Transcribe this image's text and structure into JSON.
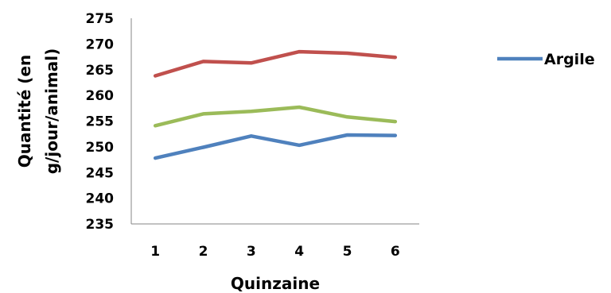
{
  "chart_data": {
    "type": "line",
    "title": "",
    "xlabel": "Quinzaine",
    "ylabel_line1": "Quantité (en",
    "ylabel_line2": "g/jour/animal)",
    "categories": [
      "1",
      "2",
      "3",
      "4",
      "5",
      "6"
    ],
    "ylim": [
      235,
      275
    ],
    "yticks": [
      235,
      240,
      245,
      250,
      255,
      260,
      265,
      270,
      275
    ],
    "grid": false,
    "legend_position": "right",
    "series": [
      {
        "name": "Argile",
        "color": "#4f81bd",
        "values": [
          247.8,
          249.9,
          252.1,
          250.3,
          252.3,
          252.2
        ]
      },
      {
        "name": "",
        "color": "#c0504d",
        "values": [
          263.8,
          266.6,
          266.3,
          268.5,
          268.2,
          267.4
        ]
      },
      {
        "name": "",
        "color": "#9bbb59",
        "values": [
          254.1,
          256.4,
          256.9,
          257.7,
          255.8,
          254.9
        ]
      }
    ]
  }
}
